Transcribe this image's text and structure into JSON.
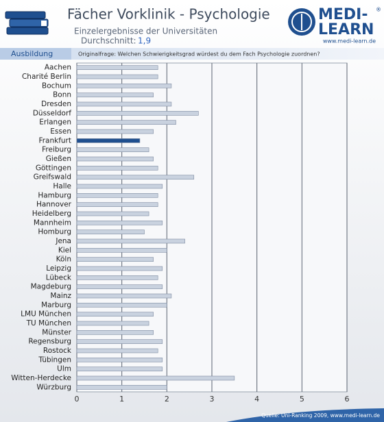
{
  "header": {
    "title": "Fächer Vorklinik - Psychologie",
    "subtitle": "Einzelergebnisse der Universitäten",
    "average_label": "Durchschnitt:",
    "average": "1,9",
    "section": "Ausbildung",
    "question": "Originalfrage: Welchen Schwierigkeitsgrad würdest du dem Fach Psychologie zuordnen?"
  },
  "logo": {
    "line1": "MEDI-",
    "line2": "LEARN",
    "mark": "®",
    "url": "www.medi-learn.de"
  },
  "footer": {
    "source": "Quelle: Uni-Ranking 2009, www.medi-learn.de"
  },
  "chart_data": {
    "type": "hbar",
    "categories": [
      "Aachen",
      "Charité Berlin",
      "Bochum",
      "Bonn",
      "Dresden",
      "Düsseldorf",
      "Erlangen",
      "Essen",
      "Frankfurt",
      "Freiburg",
      "Gießen",
      "Göttingen",
      "Greifswald",
      "Halle",
      "Hamburg",
      "Hannover",
      "Heidelberg",
      "Mannheim",
      "Homburg",
      "Jena",
      "Kiel",
      "Köln",
      "Leipzig",
      "Lübeck",
      "Magdeburg",
      "Mainz",
      "Marburg",
      "LMU München",
      "TU München",
      "Münster",
      "Regensburg",
      "Rostock",
      "Tübingen",
      "Ulm",
      "Witten-Herdecke",
      "Würzburg"
    ],
    "values": [
      1.8,
      1.8,
      2.1,
      1.7,
      2.1,
      2.7,
      2.2,
      1.7,
      1.4,
      1.6,
      1.7,
      1.8,
      2.6,
      1.9,
      1.8,
      1.8,
      1.6,
      1.9,
      1.5,
      2.4,
      2.0,
      1.7,
      1.9,
      1.8,
      1.9,
      2.1,
      2.0,
      1.7,
      1.6,
      1.7,
      1.9,
      1.8,
      1.9,
      1.9,
      3.5,
      2.0
    ],
    "colors": [
      "#c9d2df",
      "#c9d2df",
      "#c9d2df",
      "#c9d2df",
      "#c9d2df",
      "#c9d2df",
      "#c9d2df",
      "#c9d2df",
      "#1f4f8f",
      "#c9d2df",
      "#c9d2df",
      "#c9d2df",
      "#c9d2df",
      "#c9d2df",
      "#c9d2df",
      "#c9d2df",
      "#c9d2df",
      "#c9d2df",
      "#c9d2df",
      "#c9d2df",
      "#c9d2df",
      "#c9d2df",
      "#c9d2df",
      "#c9d2df",
      "#c9d2df",
      "#c9d2df",
      "#c9d2df",
      "#c9d2df",
      "#c9d2df",
      "#c9d2df",
      "#c9d2df",
      "#c9d2df",
      "#c9d2df",
      "#c9d2df",
      "#c9d2df",
      "#c9d2df"
    ],
    "xlim": [
      0,
      6
    ],
    "xticks": [
      0,
      1,
      2,
      3,
      4,
      5,
      6
    ],
    "grid": true
  }
}
